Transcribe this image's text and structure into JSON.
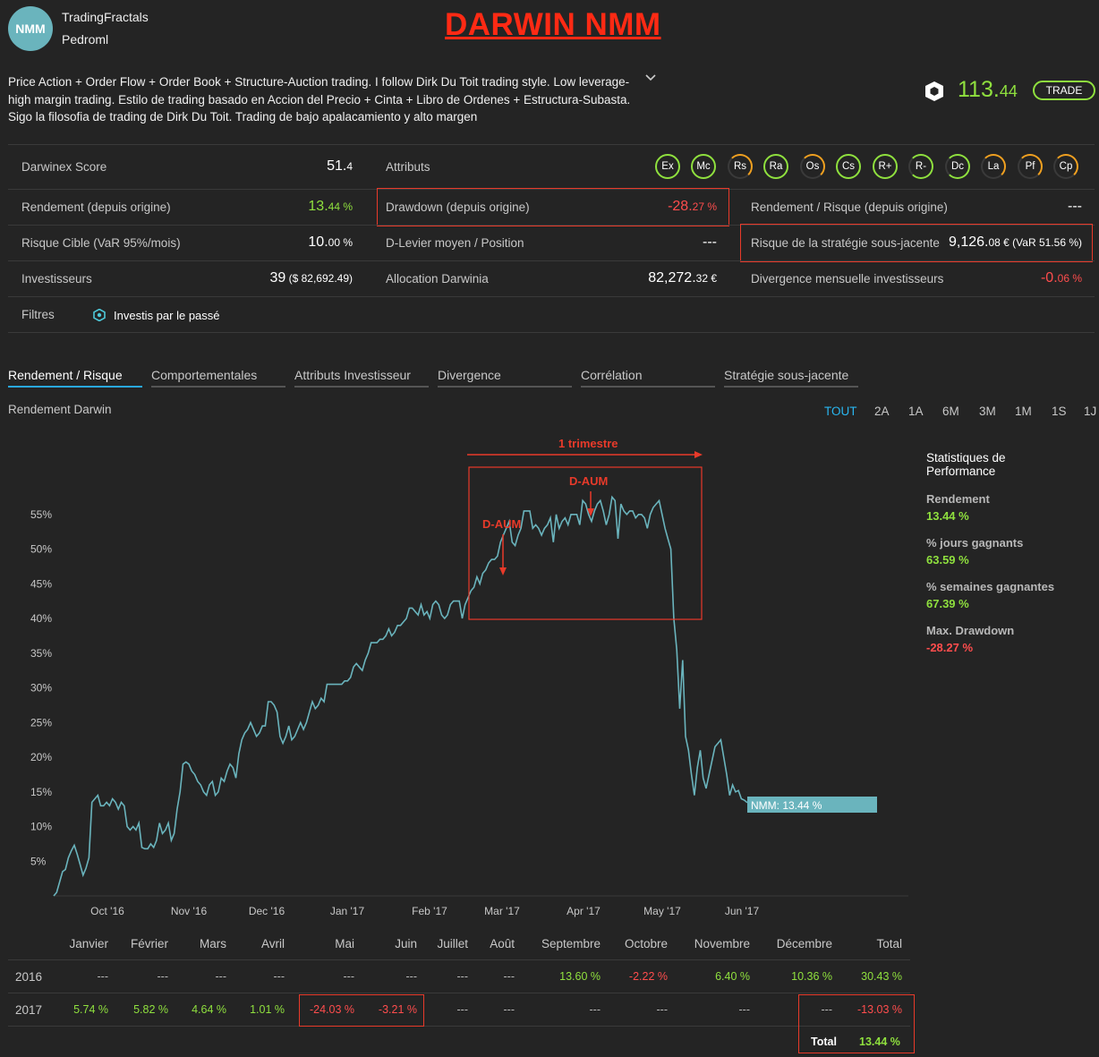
{
  "header": {
    "avatar_text": "NMM",
    "username": "TradingFractals",
    "subname": "Pedroml",
    "annotation_title": "DARWIN NMM",
    "description": "Price Action + Order Flow + Order Book + Structure-Auction trading. I follow Dirk Du Toit trading style. Low leverage-high margin trading. Estilo de trading basado en Accion del Precio + Cinta + Libro de Ordenes + Estructura-Subasta. Sigo la filosofia de trading de Dirk Du Toit. Trading de bajo apalacamiento y alto margen",
    "price_main": "113.",
    "price_dec": "44",
    "trade_label": "TRADE"
  },
  "stats": {
    "score_label": "Darwinex Score",
    "score_main": "51.",
    "score_dec": "4",
    "attributs_label": "Attributs",
    "attrs": [
      "Ex",
      "Mc",
      "Rs",
      "Ra",
      "Os",
      "Cs",
      "R+",
      "R-",
      "Dc",
      "La",
      "Pf",
      "Cp"
    ],
    "rendement_label": "Rendement (depuis origine)",
    "rendement_main": "13.",
    "rendement_dec": "44 %",
    "drawdown_label": "Drawdown (depuis origine)",
    "drawdown_main": "-28.",
    "drawdown_dec": "27 %",
    "rr_label": "Rendement / Risque (depuis origine)",
    "rr_val": "---",
    "risque_label": "Risque Cible (VaR 95%/mois)",
    "risque_main": "10.",
    "risque_dec": "00 %",
    "dlevier_label": "D-Levier moyen / Position",
    "dlevier_val": "---",
    "strat_label": "Risque de la stratégie sous-jacente",
    "strat_main": "9,126.",
    "strat_dec": "08 € (VaR 51.56 %)",
    "inv_label": "Investisseurs",
    "inv_main": "39",
    "inv_dec": " ($ 82,692.49)",
    "alloc_label": "Allocation Darwinia",
    "alloc_main": "82,272.",
    "alloc_dec": "32 €",
    "div_label": "Divergence mensuelle investisseurs",
    "div_main": "-0.",
    "div_dec": "06 %",
    "filtres_label": "Filtres",
    "filtres_val": "Investis par le passé"
  },
  "tabs": [
    "Rendement / Risque",
    "Comportementales",
    "Attributs Investisseur",
    "Divergence",
    "Corrélation",
    "Stratégie sous-jacente"
  ],
  "chart_section_title": "Rendement Darwin",
  "ranges": [
    "TOUT",
    "2A",
    "1A",
    "6M",
    "3M",
    "1M",
    "1S",
    "1J"
  ],
  "chart_data": {
    "type": "line",
    "x_ticks": [
      "Oct '16",
      "Nov '16",
      "Dec '16",
      "Jan '17",
      "Feb '17",
      "Mar '17",
      "Apr '17",
      "May '17",
      "Jun '17"
    ],
    "y_ticks": [
      "5%",
      "10%",
      "15%",
      "20%",
      "25%",
      "30%",
      "35%",
      "40%",
      "45%",
      "50%",
      "55%"
    ],
    "ylim": [
      0,
      60
    ],
    "series": [
      {
        "name": "NMM",
        "values": [
          0,
          0.5,
          2,
          3.5,
          3.8,
          5.5,
          6.5,
          7.3,
          6,
          4.5,
          3,
          4,
          5.5,
          13.5,
          14,
          14.5,
          13,
          13,
          13.5,
          13,
          14,
          13.5,
          12.5,
          13.5,
          13,
          10,
          9.5,
          10,
          9.5,
          10.5,
          7,
          6.8,
          6.8,
          7.5,
          7,
          8,
          10.5,
          9,
          9.5,
          10.5,
          8,
          9,
          12.5,
          15,
          19,
          19.3,
          19,
          18,
          17.5,
          16.5,
          16,
          15,
          14.5,
          16,
          16.5,
          14.5,
          15,
          17,
          16.5,
          18,
          19,
          18.5,
          17,
          20.5,
          22.5,
          23.5,
          24,
          25,
          24,
          23,
          23.5,
          24.5,
          24.5,
          28,
          28,
          27.5,
          26.5,
          23,
          22,
          23,
          24.5,
          22.5,
          23,
          24,
          25,
          24,
          25,
          26.5,
          28,
          27,
          27.5,
          28.5,
          28,
          30.5,
          30.5,
          30.5,
          30.5,
          30.5,
          30.5,
          31,
          31,
          31.5,
          33,
          33.5,
          33,
          32.5,
          34,
          35,
          36.5,
          36.5,
          36.5,
          37,
          37,
          37.5,
          38.5,
          37.5,
          38,
          39,
          39,
          39.5,
          40,
          41.5,
          41.5,
          41,
          40.5,
          42,
          40.5,
          41,
          40,
          42,
          42.5,
          42,
          40.5,
          40,
          40.5,
          42,
          42.5,
          42.5,
          42.5,
          40,
          42,
          43,
          44,
          44.5,
          46,
          45,
          46.5,
          47,
          48,
          48.5,
          48.5,
          49,
          51,
          52,
          53,
          54,
          51,
          50.5,
          52,
          53,
          55.5,
          55.5,
          55.5,
          53,
          53.5,
          53,
          52,
          53,
          53.5,
          54.5,
          51,
          55,
          53,
          54,
          54.5,
          53.5,
          55,
          55,
          55,
          53.5,
          57,
          56.5,
          55,
          54,
          55.5,
          56.5,
          57,
          55.5,
          53.5,
          55,
          57.5,
          57,
          51.5,
          56.5,
          55.5,
          55,
          55.5,
          55.5,
          54.5,
          55,
          55,
          54.5,
          53,
          55,
          56,
          56.5,
          57,
          55,
          53,
          51.5,
          50,
          40,
          35.5,
          27,
          34,
          23,
          21,
          17.5,
          14.5,
          18.5,
          21,
          17,
          15.5,
          17.5,
          19.5,
          21.5,
          22,
          22.5,
          20,
          17.5,
          14.5,
          16,
          15,
          15.2,
          14,
          13.8,
          13.44
        ]
      }
    ],
    "annotations": [
      "1 trimestre",
      "D-AUM",
      "D-AUM"
    ],
    "label": "NMM: 13.44 %"
  },
  "perf_stats": {
    "title": "Statistiques de Performance",
    "items": [
      {
        "label": "Rendement",
        "value": "13.44 %",
        "color": "#8fe03e"
      },
      {
        "label": "% jours gagnants",
        "value": "63.59 %",
        "color": "#8fe03e"
      },
      {
        "label": "% semaines gagnantes",
        "value": "67.39 %",
        "color": "#8fe03e"
      },
      {
        "label": "Max. Drawdown",
        "value": "-28.27 %",
        "color": "#ff4d4d"
      }
    ]
  },
  "monthly": {
    "headers": [
      "Janvier",
      "Février",
      "Mars",
      "Avril",
      "Mai",
      "Juin",
      "Juillet",
      "Août",
      "Septembre",
      "Octobre",
      "Novembre",
      "Décembre",
      "Total"
    ],
    "rows": [
      {
        "year": "2016",
        "values": [
          "---",
          "---",
          "---",
          "---",
          "---",
          "---",
          "---",
          "---",
          "13.60 %",
          "-2.22 %",
          "6.40 %",
          "10.36 %",
          "30.43 %"
        ]
      },
      {
        "year": "2017",
        "values": [
          "5.74 %",
          "5.82 %",
          "4.64 %",
          "1.01 %",
          "-24.03 %",
          "-3.21 %",
          "---",
          "---",
          "---",
          "---",
          "---",
          "---",
          "-13.03 %"
        ]
      }
    ],
    "total_label": "Total",
    "total_value": "13.44 %"
  }
}
